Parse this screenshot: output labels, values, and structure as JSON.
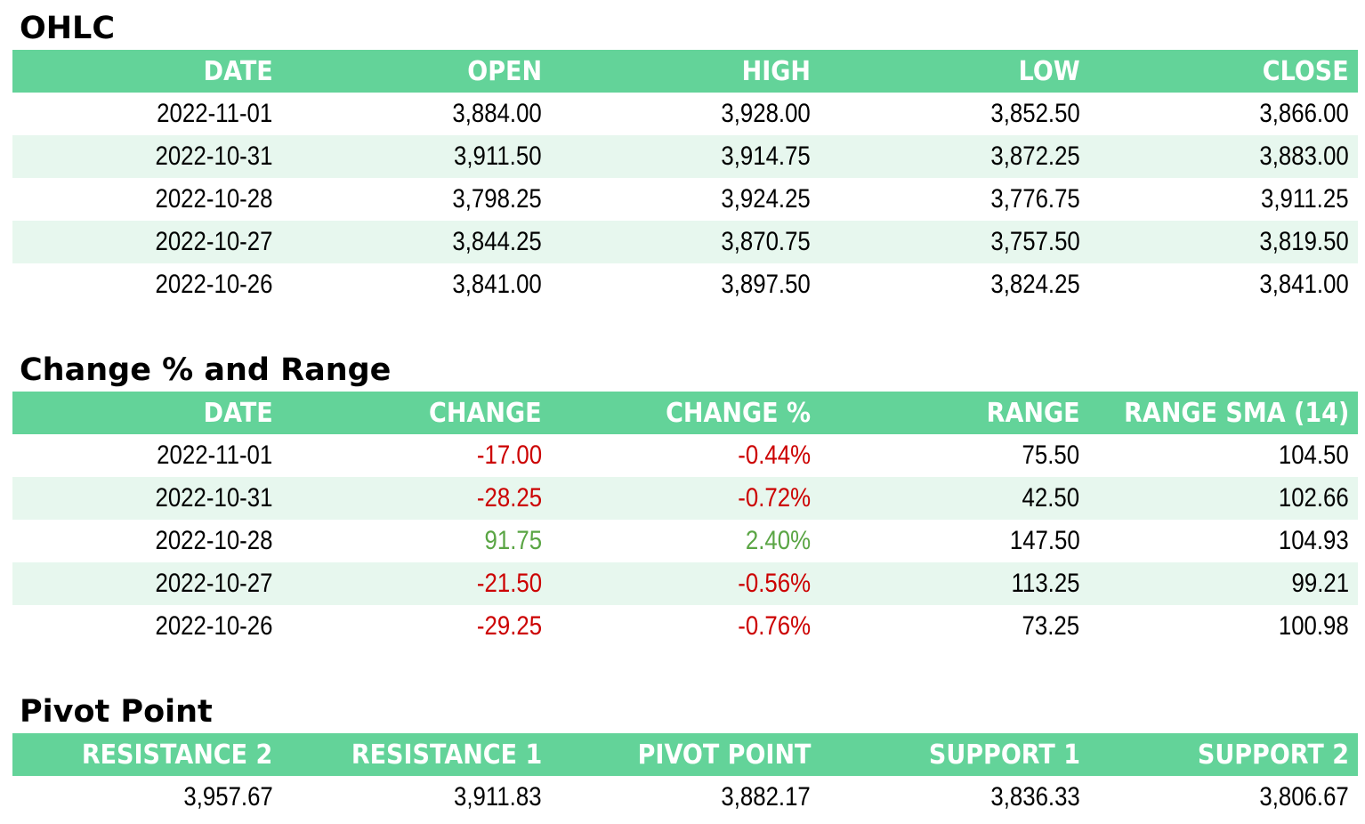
{
  "colors": {
    "header_bg": "#63d399",
    "alt_row_bg": "#e7f7ee",
    "negative": "#cc0000",
    "positive": "#5aa544"
  },
  "ohlc": {
    "title": "OHLC",
    "headers": [
      "DATE",
      "OPEN",
      "HIGH",
      "LOW",
      "CLOSE"
    ],
    "rows": [
      [
        "2022-11-01",
        "3,884.00",
        "3,928.00",
        "3,852.50",
        "3,866.00"
      ],
      [
        "2022-10-31",
        "3,911.50",
        "3,914.75",
        "3,872.25",
        "3,883.00"
      ],
      [
        "2022-10-28",
        "3,798.25",
        "3,924.25",
        "3,776.75",
        "3,911.25"
      ],
      [
        "2022-10-27",
        "3,844.25",
        "3,870.75",
        "3,757.50",
        "3,819.50"
      ],
      [
        "2022-10-26",
        "3,841.00",
        "3,897.50",
        "3,824.25",
        "3,841.00"
      ]
    ]
  },
  "change": {
    "title": "Change % and Range",
    "headers": [
      "DATE",
      "CHANGE",
      "CHANGE %",
      "RANGE",
      "RANGE SMA (14)"
    ],
    "rows": [
      [
        "2022-11-01",
        "-17.00",
        "-0.44%",
        "75.50",
        "104.50"
      ],
      [
        "2022-10-31",
        "-28.25",
        "-0.72%",
        "42.50",
        "102.66"
      ],
      [
        "2022-10-28",
        "91.75",
        "2.40%",
        "147.50",
        "104.93"
      ],
      [
        "2022-10-27",
        "-21.50",
        "-0.56%",
        "113.25",
        "99.21"
      ],
      [
        "2022-10-26",
        "-29.25",
        "-0.76%",
        "73.25",
        "100.98"
      ]
    ]
  },
  "pivot": {
    "title": "Pivot Point",
    "headers": [
      "RESISTANCE 2",
      "RESISTANCE 1",
      "PIVOT POINT",
      "SUPPORT 1",
      "SUPPORT 2"
    ],
    "rows": [
      [
        "3,957.67",
        "3,911.83",
        "3,882.17",
        "3,836.33",
        "3,806.67"
      ]
    ]
  }
}
